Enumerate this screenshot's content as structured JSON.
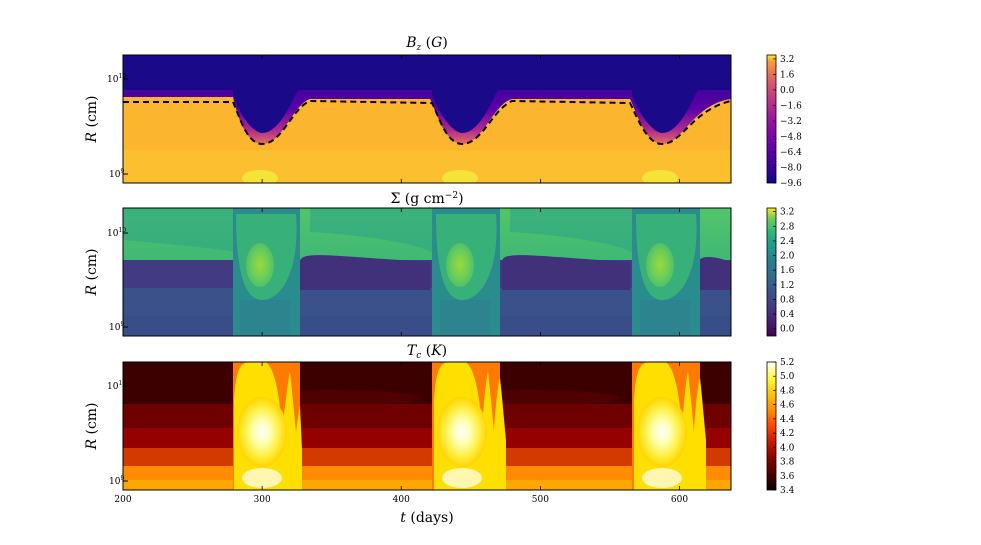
{
  "chart_data": [
    {
      "type": "heatmap",
      "title": "B_z (G)",
      "xlabel": "",
      "ylabel": "R (cm)",
      "xlim": [
        200,
        637
      ],
      "ylog": true,
      "ylim": [
        800000000.0,
        18000000000.0
      ],
      "ytick_labels": [
        "10¹⁰",
        "10⁹"
      ],
      "ytick_values": [
        10000000000.0,
        1000000000.0
      ],
      "colormap": "plasma",
      "colorbar_range": [
        -9.6,
        3.6
      ],
      "colorbar_ticks": [
        "3.2",
        "1.6",
        "0.0",
        "−1.6",
        "−3.2",
        "−4.8",
        "−6.4",
        "−8.0",
        "−9.6"
      ],
      "colorbar_tick_values": [
        3.2,
        1.6,
        0.0,
        -1.6,
        -3.2,
        -4.8,
        -6.4,
        -8.0,
        -9.6
      ],
      "contour": "dashed",
      "outburst_onsets_days": [
        280,
        424,
        566
      ]
    },
    {
      "type": "heatmap",
      "title": "Σ (g cm⁻²)",
      "xlabel": "",
      "ylabel": "R (cm)",
      "xlim": [
        200,
        637
      ],
      "ylog": true,
      "ylim": [
        800000000.0,
        18000000000.0
      ],
      "ytick_labels": [
        "10¹⁰",
        "10⁹"
      ],
      "ytick_values": [
        10000000000.0,
        1000000000.0
      ],
      "colormap": "viridis",
      "colorbar_range": [
        -0.2,
        3.3
      ],
      "colorbar_ticks": [
        "3.2",
        "2.8",
        "2.4",
        "2.0",
        "1.6",
        "1.2",
        "0.8",
        "0.4",
        "0.0"
      ],
      "colorbar_tick_values": [
        3.2,
        2.8,
        2.4,
        2.0,
        1.6,
        1.2,
        0.8,
        0.4,
        0.0
      ]
    },
    {
      "type": "heatmap",
      "title": "T_c (K)",
      "xlabel": "t (days)",
      "ylabel": "R (cm)",
      "xlim": [
        200,
        637
      ],
      "xtick_labels": [
        "200",
        "300",
        "400",
        "500",
        "600"
      ],
      "xtick_values": [
        200,
        300,
        400,
        500,
        600
      ],
      "ylog": true,
      "ylim": [
        800000000.0,
        18000000000.0
      ],
      "ytick_labels": [
        "10¹⁰",
        "10⁹"
      ],
      "ytick_values": [
        10000000000.0,
        1000000000.0
      ],
      "colormap": "hot",
      "colorbar_range": [
        3.4,
        5.2
      ],
      "colorbar_ticks": [
        "5.2",
        "5.0",
        "4.8",
        "4.6",
        "4.4",
        "4.2",
        "4.0",
        "3.8",
        "3.6",
        "3.4"
      ],
      "colorbar_tick_values": [
        5.2,
        5.0,
        4.8,
        4.6,
        4.4,
        4.2,
        4.0,
        3.8,
        3.6,
        3.4
      ]
    }
  ],
  "colors": {
    "bz_bg_dark": "#1a0a8a",
    "bz_bg_orange": "#fdb32f",
    "sigma_top": "#4fc86b",
    "sigma_dark": "#3d2a78",
    "sigma_low": "#31617f",
    "tc_dark": "#3a0000",
    "tc_red": "#8b0000",
    "tc_orange": "#ffa500",
    "tc_bright": "#ffffd0"
  }
}
